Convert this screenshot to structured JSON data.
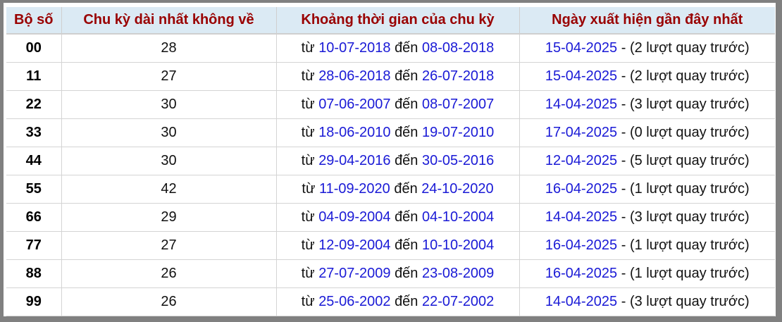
{
  "header": {
    "col_number": "Bộ số",
    "col_longest": "Chu kỳ dài nhất không về",
    "col_period": "Khoảng thời gian của chu kỳ",
    "col_latest": "Ngày xuất hiện gần đây nhất"
  },
  "labels": {
    "from": "từ",
    "to": "đến",
    "dash": "-"
  },
  "rows": [
    {
      "number": "00",
      "cycle": "28",
      "start": "10-07-2018",
      "end": "08-08-2018",
      "latest": "15-04-2025",
      "ago": "(2 lượt quay trước)"
    },
    {
      "number": "11",
      "cycle": "27",
      "start": "28-06-2018",
      "end": "26-07-2018",
      "latest": "15-04-2025",
      "ago": "(2 lượt quay trước)"
    },
    {
      "number": "22",
      "cycle": "30",
      "start": "07-06-2007",
      "end": "08-07-2007",
      "latest": "14-04-2025",
      "ago": "(3 lượt quay trước)"
    },
    {
      "number": "33",
      "cycle": "30",
      "start": "18-06-2010",
      "end": "19-07-2010",
      "latest": "17-04-2025",
      "ago": "(0 lượt quay trước)"
    },
    {
      "number": "44",
      "cycle": "30",
      "start": "29-04-2016",
      "end": "30-05-2016",
      "latest": "12-04-2025",
      "ago": "(5 lượt quay trước)"
    },
    {
      "number": "55",
      "cycle": "42",
      "start": "11-09-2020",
      "end": "24-10-2020",
      "latest": "16-04-2025",
      "ago": "(1 lượt quay trước)"
    },
    {
      "number": "66",
      "cycle": "29",
      "start": "04-09-2004",
      "end": "04-10-2004",
      "latest": "14-04-2025",
      "ago": "(3 lượt quay trước)"
    },
    {
      "number": "77",
      "cycle": "27",
      "start": "12-09-2004",
      "end": "10-10-2004",
      "latest": "16-04-2025",
      "ago": "(1 lượt quay trước)"
    },
    {
      "number": "88",
      "cycle": "26",
      "start": "27-07-2009",
      "end": "23-08-2009",
      "latest": "16-04-2025",
      "ago": "(1 lượt quay trước)"
    },
    {
      "number": "99",
      "cycle": "26",
      "start": "25-06-2002",
      "end": "22-07-2002",
      "latest": "14-04-2025",
      "ago": "(3 lượt quay trước)"
    }
  ],
  "colors": {
    "header_text": "#990000",
    "header_bg": "#dbeaf4",
    "date_link": "#1a1ad6",
    "frame": "#808080"
  }
}
